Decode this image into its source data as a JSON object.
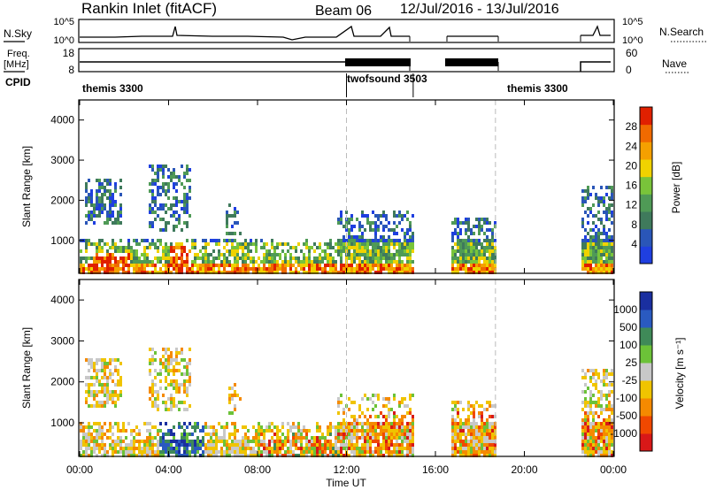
{
  "header": {
    "station": "Rankin Inlet (fitACF)",
    "beam": "Beam 06",
    "date_range": "12/Jul/2016 - 13/Jul/2016"
  },
  "time_axis": {
    "label": "Time UT",
    "ticks": [
      "00:00",
      "04:00",
      "08:00",
      "12:00",
      "16:00",
      "20:00",
      "00:00"
    ]
  },
  "nsky_panel": {
    "left_label": "N.Sky",
    "right_label": "N.Search",
    "left_ticks": [
      "10^5",
      "10^0"
    ],
    "right_ticks": [
      "10^5",
      "10^0"
    ]
  },
  "freq_panel": {
    "left_label_1": "Freq.",
    "left_label_2": "[MHz]",
    "right_label": "Nave",
    "left_ticks": [
      "18",
      "8"
    ],
    "right_ticks": [
      "60",
      "0"
    ]
  },
  "cpid_panel": {
    "label": "CPID",
    "segments": [
      {
        "name": "themis 3300",
        "start_h": 0,
        "end_h": 12
      },
      {
        "name": "twofsound 3503",
        "start_h": 12,
        "end_h": 15
      },
      {
        "name": "themis 3300",
        "start_h": 15,
        "end_h": 24
      }
    ]
  },
  "colors": {
    "power": [
      "#1f3fe0",
      "#2a56b8",
      "#3f7a5c",
      "#4f9a56",
      "#79c43a",
      "#f0d200",
      "#f5a000",
      "#f06a00",
      "#e02000"
    ],
    "velocity": [
      "#d81818",
      "#f04800",
      "#f58a00",
      "#f0c400",
      "#c8c8c8",
      "#6cc238",
      "#3f8a58",
      "#2a5ac0",
      "#1a2fa0"
    ]
  },
  "chart_data": {
    "type": "heatmap",
    "x_range_hours": [
      0,
      24
    ],
    "y_range_km": [
      180,
      4500
    ],
    "coverage_gaps_hours": [
      [
        15.0,
        16.6
      ],
      [
        18.7,
        22.5
      ]
    ],
    "panels": [
      {
        "name": "power",
        "ylabel": "Slant Range [km]",
        "yticks": [
          1000,
          2000,
          3000,
          4000
        ],
        "colorbar_label": "Power [dB]",
        "colorbar_ticks": [
          "4",
          "8",
          "12",
          "16",
          "20",
          "24",
          "28"
        ],
        "colorbar_range": [
          0,
          30
        ]
      },
      {
        "name": "velocity",
        "ylabel": "Slant Range [km]",
        "yticks": [
          1000,
          2000,
          3000,
          4000
        ],
        "colorbar_label": "Velocity [m s⁻¹]",
        "colorbar_ticks": [
          "1000",
          "500",
          "100",
          "25",
          "-25",
          "-100",
          "-500",
          "-1000"
        ]
      }
    ]
  }
}
